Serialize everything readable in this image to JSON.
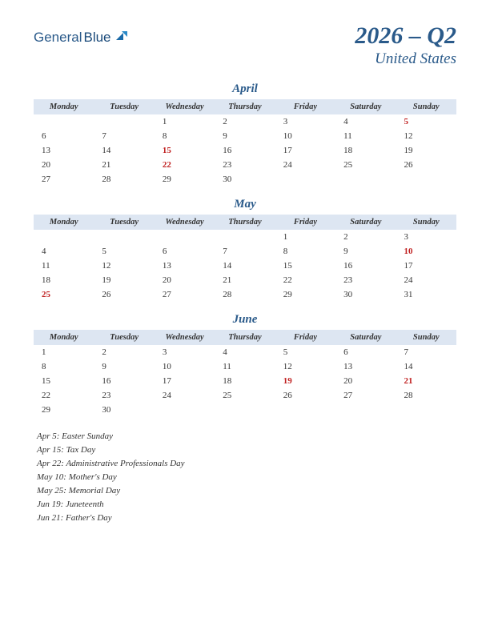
{
  "logo": {
    "part1": "General",
    "part2": "Blue"
  },
  "title": {
    "main": "2026 – Q2",
    "sub": "United States"
  },
  "colors": {
    "brand": "#2a5a8a",
    "header_bg": "#dde6f2",
    "text": "#333333",
    "holiday": "#c02020",
    "background": "#ffffff"
  },
  "weekdays": [
    "Monday",
    "Tuesday",
    "Wednesday",
    "Thursday",
    "Friday",
    "Saturday",
    "Sunday"
  ],
  "months": [
    {
      "name": "April",
      "weeks": [
        [
          "",
          "",
          "1",
          "2",
          "3",
          "4",
          "5"
        ],
        [
          "6",
          "7",
          "8",
          "9",
          "10",
          "11",
          "12"
        ],
        [
          "13",
          "14",
          "15",
          "16",
          "17",
          "18",
          "19"
        ],
        [
          "20",
          "21",
          "22",
          "23",
          "24",
          "25",
          "26"
        ],
        [
          "27",
          "28",
          "29",
          "30",
          "",
          "",
          ""
        ]
      ],
      "holiday_days": [
        "5",
        "15",
        "22"
      ]
    },
    {
      "name": "May",
      "weeks": [
        [
          "",
          "",
          "",
          "",
          "1",
          "2",
          "3"
        ],
        [
          "4",
          "5",
          "6",
          "7",
          "8",
          "9",
          "10"
        ],
        [
          "11",
          "12",
          "13",
          "14",
          "15",
          "16",
          "17"
        ],
        [
          "18",
          "19",
          "20",
          "21",
          "22",
          "23",
          "24"
        ],
        [
          "25",
          "26",
          "27",
          "28",
          "29",
          "30",
          "31"
        ]
      ],
      "holiday_days": [
        "10",
        "25"
      ]
    },
    {
      "name": "June",
      "weeks": [
        [
          "1",
          "2",
          "3",
          "4",
          "5",
          "6",
          "7"
        ],
        [
          "8",
          "9",
          "10",
          "11",
          "12",
          "13",
          "14"
        ],
        [
          "15",
          "16",
          "17",
          "18",
          "19",
          "20",
          "21"
        ],
        [
          "22",
          "23",
          "24",
          "25",
          "26",
          "27",
          "28"
        ],
        [
          "29",
          "30",
          "",
          "",
          "",
          "",
          ""
        ]
      ],
      "holiday_days": [
        "19",
        "21"
      ]
    }
  ],
  "holidays": [
    "Apr 5: Easter Sunday",
    "Apr 15: Tax Day",
    "Apr 22: Administrative Professionals Day",
    "May 10: Mother's Day",
    "May 25: Memorial Day",
    "Jun 19: Juneteenth",
    "Jun 21: Father's Day"
  ]
}
